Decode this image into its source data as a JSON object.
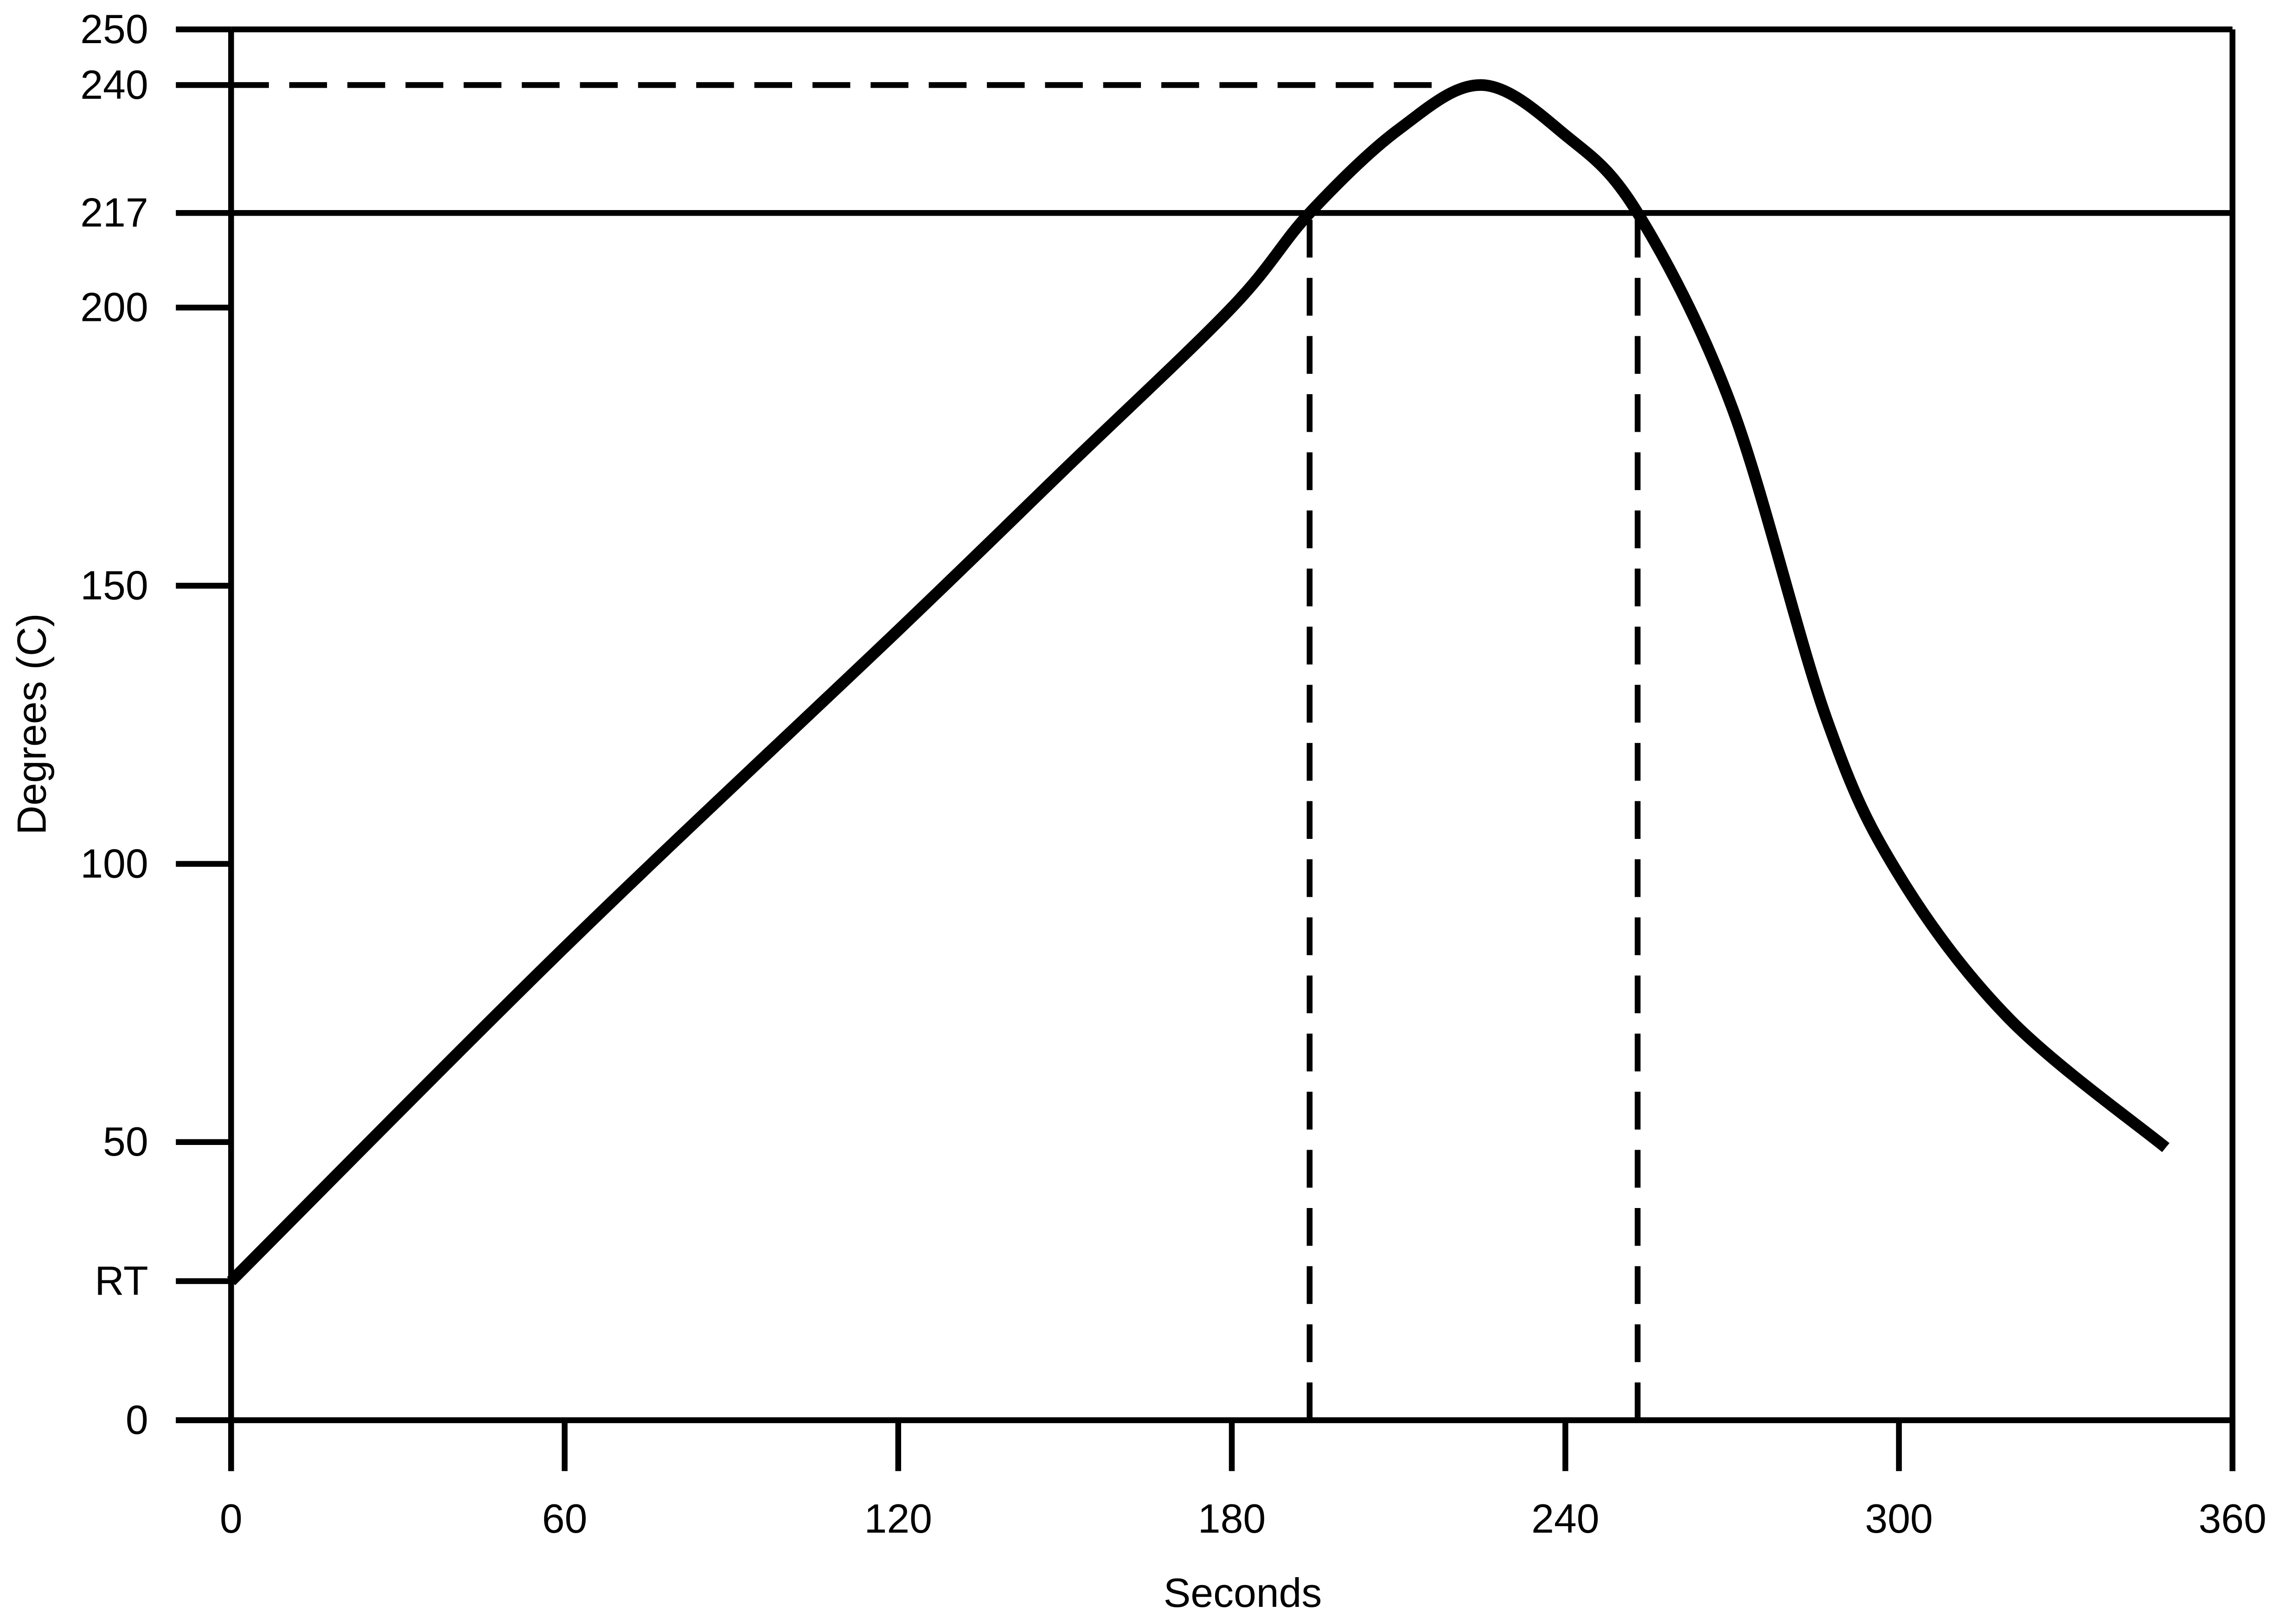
{
  "chart_data": {
    "type": "line",
    "x_label": "Seconds",
    "y_label": "Degrees (C)",
    "xlim": [
      0,
      360
    ],
    "xticks": [
      0,
      60,
      120,
      180,
      240,
      300,
      360
    ],
    "ylim": [
      0,
      250
    ],
    "yticks": [
      0,
      {
        "value": 25,
        "label": "RT"
      },
      50,
      100,
      150,
      200,
      217,
      240,
      250
    ],
    "series": [
      {
        "color": "#000000",
        "x": [
          0,
          60,
          120,
          150,
          180,
          194,
          210,
          225,
          240,
          253,
          270,
          287,
          300,
          320,
          348
        ],
        "values": [
          25,
          85,
          142,
          171,
          200,
          217,
          232,
          240,
          231,
          217,
          182,
          126,
          98,
          72,
          49
        ]
      }
    ],
    "reference_lines": [
      {
        "y": 217,
        "style": "solid"
      },
      {
        "y": 240,
        "x_end": 218,
        "style": "dashed"
      },
      {
        "x": 194,
        "y_end": 217,
        "style": "dashed"
      },
      {
        "x": 253,
        "y_end": 217,
        "style": "dashed"
      }
    ]
  }
}
